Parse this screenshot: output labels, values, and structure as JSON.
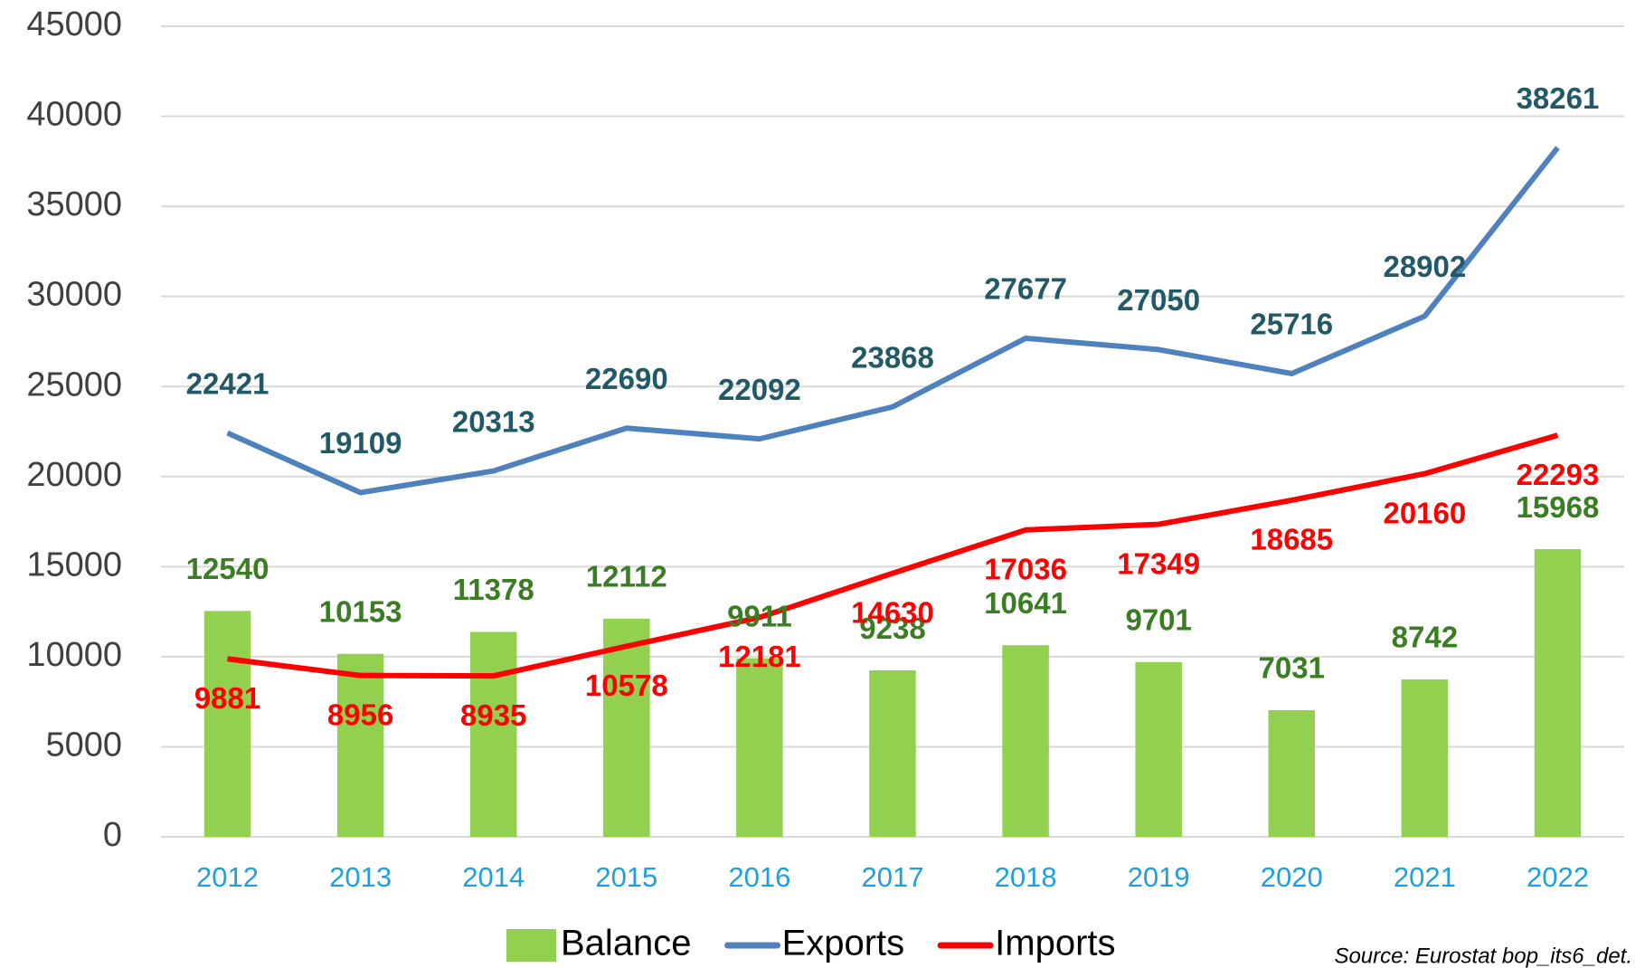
{
  "chart_data": {
    "type": "bar_line",
    "categories": [
      "2012",
      "2013",
      "2014",
      "2015",
      "2016",
      "2017",
      "2018",
      "2019",
      "2020",
      "2021",
      "2022"
    ],
    "series": [
      {
        "name": "Balance",
        "type": "bar",
        "color": "#92d050",
        "label_color": "#3b7d23",
        "values": [
          12540,
          10153,
          11378,
          12112,
          9911,
          9238,
          10641,
          9701,
          7031,
          8742,
          15968
        ]
      },
      {
        "name": "Exports",
        "type": "line",
        "color": "#4f81bd",
        "label_color": "#215967",
        "values": [
          22421,
          19109,
          20313,
          22690,
          22092,
          23868,
          27677,
          27050,
          25716,
          28902,
          38261
        ]
      },
      {
        "name": "Imports",
        "type": "line",
        "color": "#ff0000",
        "label_color": "#ff0000",
        "values": [
          9881,
          8956,
          8935,
          10578,
          12181,
          14630,
          17036,
          17349,
          18685,
          20160,
          22293
        ]
      }
    ],
    "ylim": [
      0,
      45000
    ],
    "yticks": [
      0,
      5000,
      10000,
      15000,
      20000,
      25000,
      30000,
      35000,
      40000,
      45000
    ],
    "grid": true,
    "legend": "bottom",
    "source": "Source: Eurostat bop_its6_det."
  }
}
